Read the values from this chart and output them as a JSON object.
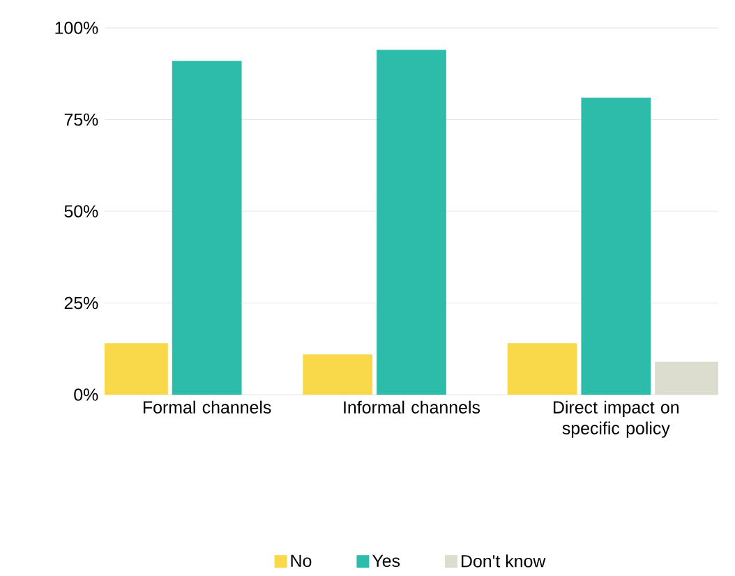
{
  "chart_data": {
    "type": "bar",
    "categories": [
      "Formal channels",
      "Informal channels",
      "Direct impact on specific policy"
    ],
    "series": [
      {
        "name": "No",
        "color": "#f9d84a",
        "values": [
          14,
          11,
          14
        ]
      },
      {
        "name": "Yes",
        "color": "#2ebcaa",
        "values": [
          91,
          94,
          81
        ]
      },
      {
        "name": "Don't know",
        "color": "#dcdccf",
        "values": [
          null,
          null,
          9
        ]
      }
    ],
    "ylim": [
      0,
      100
    ],
    "yticks": [
      {
        "value": 0,
        "label": "0%"
      },
      {
        "value": 25,
        "label": "25%"
      },
      {
        "value": 50,
        "label": "50%"
      },
      {
        "value": 75,
        "label": "75%"
      },
      {
        "value": 100,
        "label": "100%"
      }
    ],
    "grid": "y",
    "legend": "bottom"
  }
}
